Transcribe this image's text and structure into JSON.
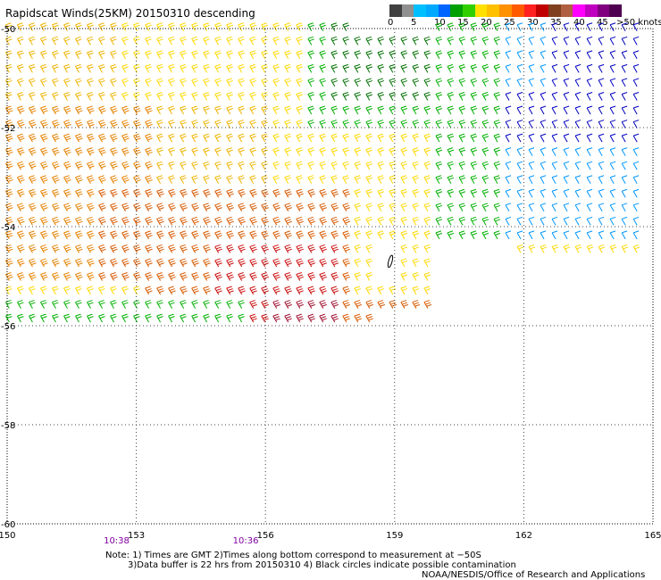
{
  "title": "Rapidscat Winds(25KM) 20150310 descending",
  "legend": {
    "labels": [
      "0",
      "5",
      "10",
      "15",
      "20",
      "25",
      "30",
      "35",
      "40",
      "45",
      ">50 knots"
    ],
    "colors": [
      "#404040",
      "#909090",
      "#00bfff",
      "#00a8ff",
      "#0064ff",
      "#00a000",
      "#30d000",
      "#ffe000",
      "#ffc000",
      "#ff9000",
      "#ff5a00",
      "#ff2020",
      "#c00000",
      "#804020",
      "#b06040",
      "#ff00ff",
      "#c000c0",
      "#800080",
      "#500050"
    ]
  },
  "map": {
    "lon_range": [
      150,
      165
    ],
    "lat_range": [
      -60,
      -50
    ],
    "lon_ticks": [
      "150",
      "153",
      "156",
      "159",
      "162",
      "165"
    ],
    "lat_ticks": [
      "-50",
      "-52",
      "-54",
      "-56",
      "-58",
      "-60"
    ],
    "time_labels": [
      {
        "lon": 152.5,
        "text": "10:38"
      },
      {
        "lon": 155.5,
        "text": "10:36"
      }
    ],
    "time_color": "#8000a0",
    "gridline_color": "#404040"
  },
  "notes": {
    "line1": "Note: 1) Times are GMT 2)Times along bottom correspond to measurement at −50S",
    "line2": "3)Data buffer is 22 hrs from 20150310 4) Black circles indicate possible contamination",
    "line3": "NOAA/NESDIS/Office of Research and Applications"
  },
  "wind_colors": {
    "blue": "#0000c0",
    "lightblue": "#0096ff",
    "green": "#00b000",
    "darkgreen": "#007000",
    "yellow": "#ffd800",
    "gold": "#f0b400",
    "orange": "#e68200",
    "darkorange": "#d85a00",
    "red": "#cc1010",
    "maroon": "#a01030"
  },
  "contamination_marker": {
    "lon": 158.9,
    "lat": -54.7
  }
}
